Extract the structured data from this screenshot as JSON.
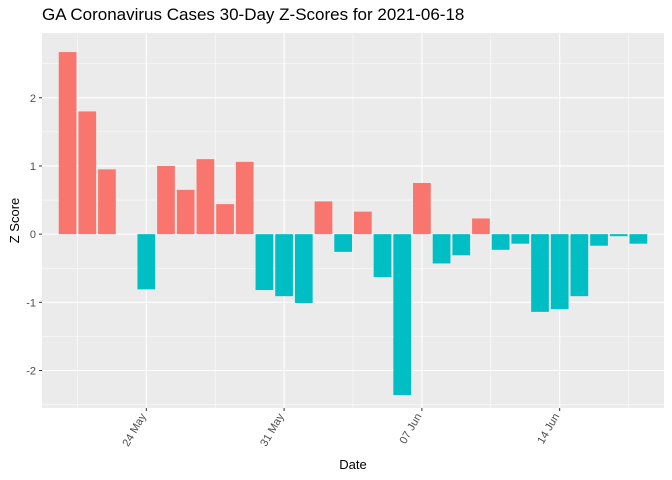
{
  "chart_data": {
    "type": "bar",
    "title": "GA Coronavirus Cases 30-Day Z-Scores for 2021-06-18",
    "xlabel": "Date",
    "ylabel": "Z Score",
    "ylim": [
      -2.55,
      2.95
    ],
    "y_ticks": [
      -2,
      -1,
      0,
      1,
      2
    ],
    "x_tick_labels": [
      {
        "date": "2021-05-24",
        "label": "24 May"
      },
      {
        "date": "2021-05-31",
        "label": "31 May"
      },
      {
        "date": "2021-06-07",
        "label": "07 Jun"
      },
      {
        "date": "2021-06-14",
        "label": "14 Jun"
      }
    ],
    "grid": true,
    "legend": "none",
    "colors": {
      "positive": "#F8766D",
      "negative": "#00BFC4",
      "panel": "#EBEBEB",
      "grid": "#FFFFFF"
    },
    "x": [
      "2021-05-20",
      "2021-05-21",
      "2021-05-22",
      "2021-05-23",
      "2021-05-24",
      "2021-05-25",
      "2021-05-26",
      "2021-05-27",
      "2021-05-28",
      "2021-05-29",
      "2021-05-30",
      "2021-05-31",
      "2021-06-01",
      "2021-06-02",
      "2021-06-03",
      "2021-06-04",
      "2021-06-05",
      "2021-06-06",
      "2021-06-07",
      "2021-06-08",
      "2021-06-09",
      "2021-06-10",
      "2021-06-11",
      "2021-06-12",
      "2021-06-13",
      "2021-06-14",
      "2021-06-15",
      "2021-06-16",
      "2021-06-17",
      "2021-06-18"
    ],
    "values": [
      2.67,
      1.8,
      0.95,
      null,
      -0.81,
      1.0,
      0.65,
      1.1,
      0.44,
      1.06,
      -0.82,
      -0.91,
      -1.01,
      0.48,
      -0.26,
      0.33,
      -0.63,
      -2.36,
      0.75,
      -0.43,
      -0.31,
      0.23,
      -0.23,
      -0.14,
      -1.14,
      -1.1,
      -0.91,
      -0.17,
      -0.03,
      -0.14
    ]
  }
}
